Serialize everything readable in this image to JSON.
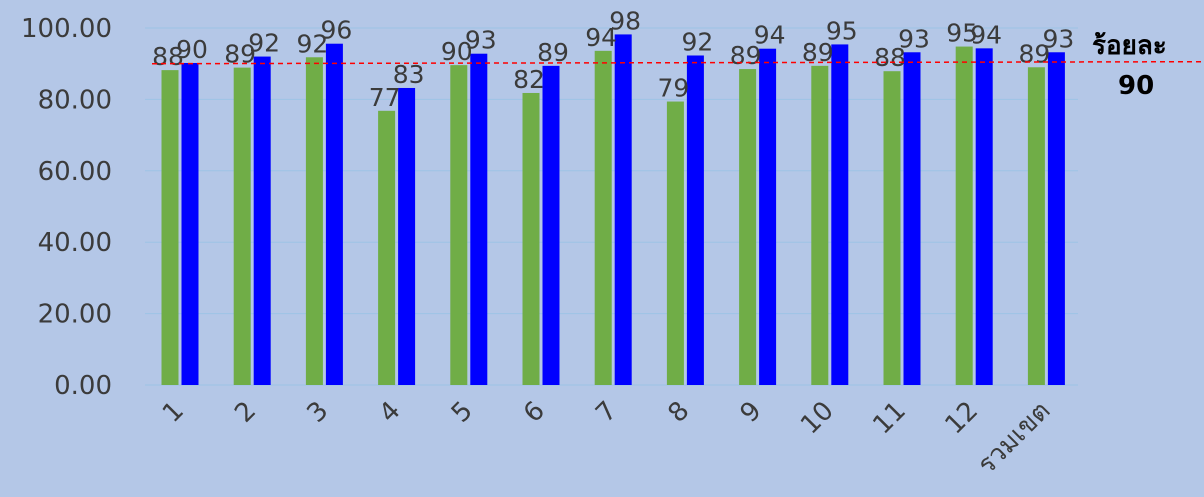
{
  "chart_data": {
    "type": "bar",
    "categories": [
      "1",
      "2",
      "3",
      "4",
      "5",
      "6",
      "7",
      "8",
      "9",
      "10",
      "11",
      "12",
      "รวมเขต"
    ],
    "series": [
      {
        "values": [
          88.2,
          88.9,
          91.8,
          76.8,
          89.6,
          81.8,
          93.6,
          79.4,
          88.5,
          89.4,
          87.9,
          94.8,
          89.0
        ],
        "color": "#70ad47"
      },
      {
        "values": [
          90.2,
          92.0,
          95.6,
          83.2,
          92.8,
          89.4,
          98.2,
          92.3,
          94.2,
          95.4,
          93.2,
          94.3,
          93.2
        ],
        "color": "#0000ff"
      }
    ],
    "data_labels": [
      [
        "88",
        "89",
        "92",
        "77",
        "90",
        "82",
        "94",
        "79",
        "89",
        "89",
        "88",
        "95",
        "89"
      ],
      [
        "90",
        "92",
        "96",
        "83",
        "93",
        "89",
        "98",
        "92",
        "94",
        "95",
        "93",
        "94",
        "93"
      ]
    ],
    "y_ticks": [
      "0.00",
      "20.00",
      "40.00",
      "60.00",
      "80.00",
      "100.00"
    ],
    "ylim": [
      0,
      100
    ],
    "target": {
      "value": 90,
      "label_line1": "ร้อยละ",
      "label_line2": "90",
      "color": "#ff0000"
    },
    "grid": true,
    "gridline_color": "#9dc3e6"
  }
}
